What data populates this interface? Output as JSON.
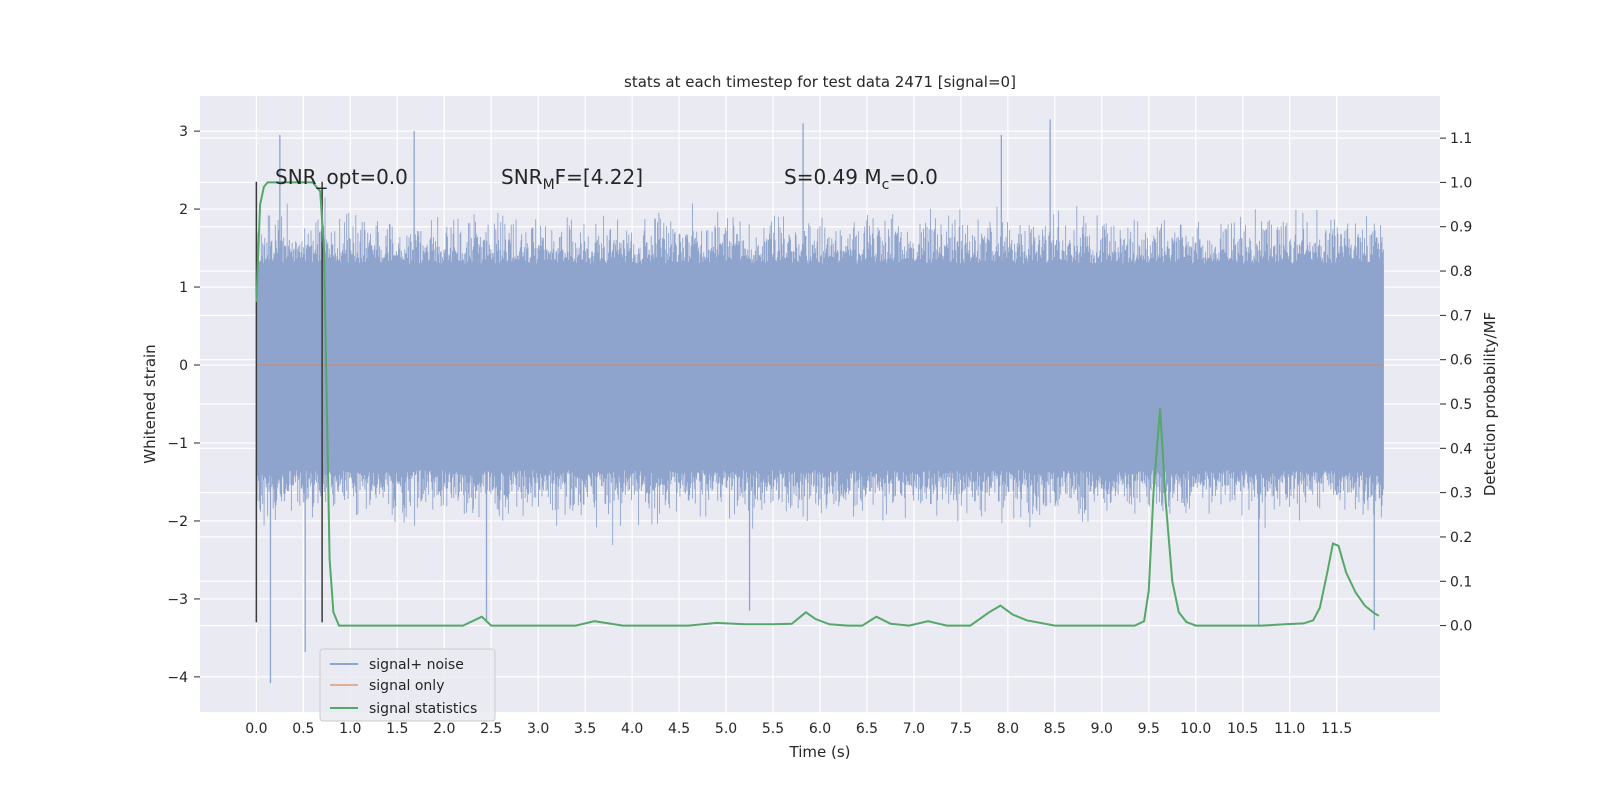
{
  "chart_data": {
    "type": "line",
    "title": "stats at each timestep for test data 2471 [signal=0]",
    "xlabel": "Time (s)",
    "ylabel_left": "Whitened strain",
    "ylabel_right": "Detection probability/MF",
    "xlim": [
      -0.6,
      12.6
    ],
    "ylim_left": [
      -4.45,
      3.45
    ],
    "ylim_right": [
      -0.195,
      1.195
    ],
    "x_ticks": [
      0.0,
      0.5,
      1.0,
      1.5,
      2.0,
      2.5,
      3.0,
      3.5,
      4.0,
      4.5,
      5.0,
      5.5,
      6.0,
      6.5,
      7.0,
      7.5,
      8.0,
      8.5,
      9.0,
      9.5,
      10.0,
      10.5,
      11.0,
      11.5
    ],
    "x_tick_labels": [
      "0.0",
      "0.5",
      "1.0",
      "1.5",
      "2.0",
      "2.5",
      "3.0",
      "3.5",
      "4.0",
      "4.5",
      "5.0",
      "5.5",
      "6.0",
      "6.5",
      "7.0",
      "7.5",
      "8.0",
      "8.5",
      "9.0",
      "9.5",
      "10.0",
      "10.5",
      "11.0",
      "11.5"
    ],
    "y_left_ticks": [
      -4,
      -3,
      -2,
      -1,
      0,
      1,
      2,
      3
    ],
    "y_left_tick_labels": [
      "−4",
      "−3",
      "−2",
      "−1",
      "0",
      "1",
      "2",
      "3"
    ],
    "y_right_ticks": [
      0.0,
      0.1,
      0.2,
      0.3,
      0.4,
      0.5,
      0.6,
      0.7,
      0.8,
      0.9,
      1.0,
      1.1
    ],
    "y_right_tick_labels": [
      "0.0",
      "0.1",
      "0.2",
      "0.3",
      "0.4",
      "0.5",
      "0.6",
      "0.7",
      "0.8",
      "0.9",
      "1.0",
      "1.1"
    ],
    "grid": true,
    "legend_position": "lower-left",
    "series": [
      {
        "name": "signal+ noise",
        "axis": "left",
        "color": "#8fa4cc",
        "x_range": [
          0.0,
          12.0
        ],
        "band": [
          -1.35,
          1.3
        ],
        "peaks": [
          {
            "x": 0.15,
            "y": -4.08
          },
          {
            "x": 0.25,
            "y": 2.95
          },
          {
            "x": 0.52,
            "y": -3.68
          },
          {
            "x": 1.68,
            "y": 3.0
          },
          {
            "x": 2.45,
            "y": -3.3
          },
          {
            "x": 5.25,
            "y": -3.15
          },
          {
            "x": 5.82,
            "y": 3.1
          },
          {
            "x": 7.93,
            "y": 2.95
          },
          {
            "x": 8.45,
            "y": 3.15
          },
          {
            "x": 10.67,
            "y": -3.35
          },
          {
            "x": 11.9,
            "y": -3.4
          }
        ]
      },
      {
        "name": "signal only",
        "axis": "left",
        "color": "#dd8452",
        "x": [
          0.0,
          12.0
        ],
        "values": [
          0.0,
          0.0
        ]
      },
      {
        "name": "signal statistics",
        "axis": "right",
        "color": "#55a868",
        "x": [
          0.0,
          0.04,
          0.08,
          0.12,
          0.18,
          0.3,
          0.45,
          0.6,
          0.68,
          0.72,
          0.78,
          0.82,
          0.88,
          0.95,
          1.2,
          1.6,
          2.0,
          2.2,
          2.4,
          2.5,
          2.7,
          3.0,
          3.4,
          3.6,
          3.75,
          3.9,
          4.2,
          4.6,
          4.9,
          5.2,
          5.5,
          5.7,
          5.85,
          5.95,
          6.1,
          6.3,
          6.45,
          6.6,
          6.75,
          6.95,
          7.15,
          7.35,
          7.6,
          7.8,
          7.92,
          8.05,
          8.2,
          8.5,
          9.0,
          9.35,
          9.45,
          9.5,
          9.55,
          9.62,
          9.68,
          9.75,
          9.82,
          9.9,
          10.0,
          10.3,
          10.7,
          10.95,
          11.15,
          11.25,
          11.32,
          11.4,
          11.46,
          11.52,
          11.6,
          11.7,
          11.8,
          11.9,
          11.95
        ],
        "values": [
          0.73,
          0.95,
          0.99,
          1.0,
          1.0,
          1.0,
          1.0,
          1.0,
          0.98,
          0.85,
          0.15,
          0.03,
          0.0,
          0.0,
          0.0,
          0.0,
          0.0,
          0.0,
          0.02,
          0.0,
          0.0,
          0.0,
          0.0,
          0.01,
          0.005,
          0.0,
          0.0,
          0.0,
          0.006,
          0.003,
          0.003,
          0.004,
          0.03,
          0.015,
          0.003,
          0.0,
          0.0,
          0.02,
          0.004,
          0.0,
          0.01,
          0.0,
          0.0,
          0.03,
          0.045,
          0.025,
          0.012,
          0.0,
          0.0,
          0.0,
          0.01,
          0.08,
          0.3,
          0.49,
          0.28,
          0.1,
          0.03,
          0.008,
          0.0,
          0.0,
          0.0,
          0.003,
          0.005,
          0.012,
          0.04,
          0.12,
          0.185,
          0.18,
          0.12,
          0.075,
          0.045,
          0.028,
          0.022
        ]
      }
    ],
    "vertical_lines": [
      {
        "x": 0.0,
        "y_from": -3.3,
        "y_to": 2.35,
        "color": "#3b3b3b"
      },
      {
        "x": 0.7,
        "y_from": -3.3,
        "y_to": 2.35,
        "color": "#3b3b3b"
      }
    ],
    "annotations": [
      {
        "id": "snr-opt",
        "pre": "SNR_opt=0.0",
        "sub": "",
        "post": ""
      },
      {
        "id": "snr-mf",
        "pre": "SNR",
        "sub": "M",
        "post": "F=[4.22]"
      },
      {
        "id": "s-mc",
        "pre": "S=0.49   M",
        "sub": "c",
        "post": "=0.0"
      }
    ]
  }
}
